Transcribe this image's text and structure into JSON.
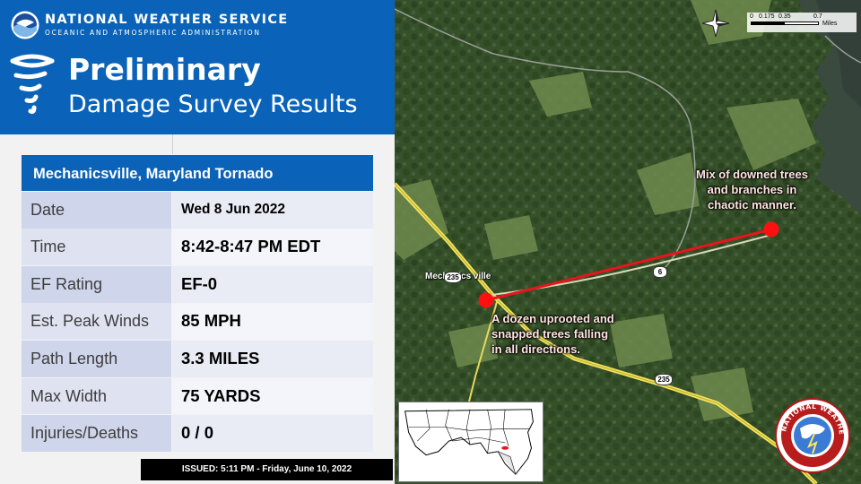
{
  "header": {
    "agency_name": "NATIONAL WEATHER SERVICE",
    "agency_subtitle": "OCEANIC AND ATMOSPHERIC ADMINISTRATION",
    "title_line1": "Preliminary",
    "title_line2": "Damage Survey Results",
    "colors": {
      "header_blue": "#0a63b8",
      "cell_label": "#cfd5ea",
      "cell_value": "#e9ecf5"
    }
  },
  "survey": {
    "event_title": "Mechanicsville, Maryland Tornado",
    "rows": [
      {
        "label": "Date",
        "value": "Wed 8 Jun 2022"
      },
      {
        "label": "Time",
        "value": "8:42-8:47 PM EDT"
      },
      {
        "label": "EF Rating",
        "value": "EF-0"
      },
      {
        "label": "Est. Peak Winds",
        "value": "85 MPH"
      },
      {
        "label": "Path Length",
        "value": "3.3 MILES"
      },
      {
        "label": "Max Width",
        "value": "75 YARDS"
      },
      {
        "label": "Injuries/Deaths",
        "value": "0 / 0"
      }
    ],
    "issued": "ISSUED: 5:11 PM - Friday, June 10, 2022"
  },
  "map": {
    "town_label": "Mechanics ville",
    "annotation_end": [
      "Mix of downed trees",
      "and branches in",
      "chaotic manner."
    ],
    "annotation_start": [
      "A dozen uprooted and",
      "snapped trees falling",
      "in all directions."
    ],
    "route_shields": [
      "235",
      "6",
      "235"
    ],
    "scale_labels": [
      "0",
      "0.175",
      "0.35",
      "0.7"
    ],
    "scale_unit": "Miles",
    "icons": [
      "noaa-logo-icon",
      "tornado-icon",
      "compass-icon",
      "nws-seal-icon"
    ],
    "track_color": "#e8141c",
    "road_color": "#f2e45a"
  },
  "seal": {
    "text": "NATIONAL WEATHER SERVICE"
  }
}
